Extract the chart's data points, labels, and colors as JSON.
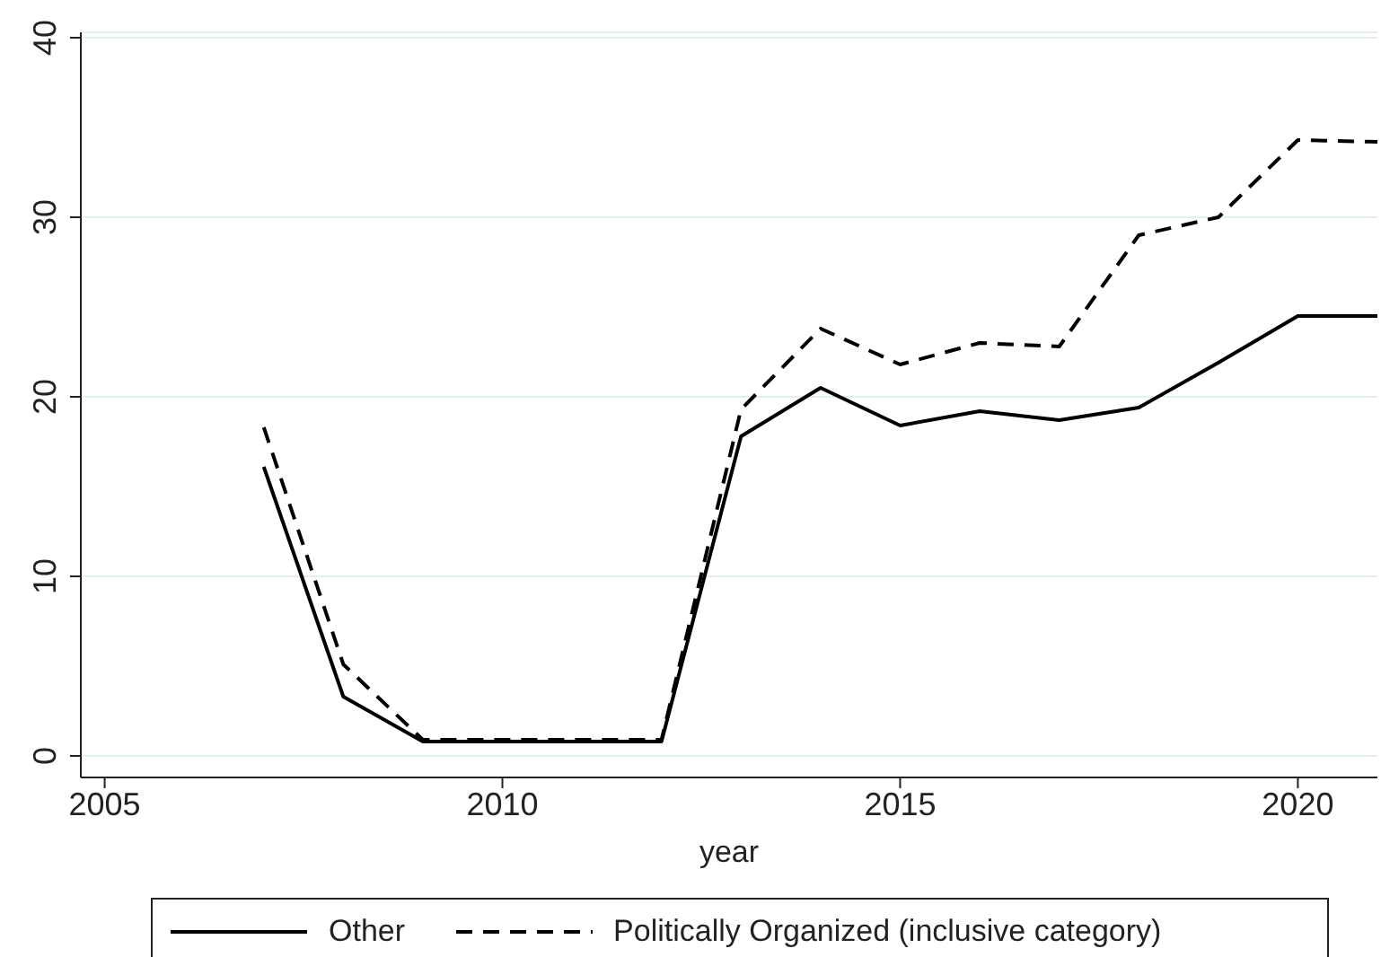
{
  "chart_data": {
    "type": "line",
    "xlabel": "year",
    "x": [
      2007,
      2008,
      2009,
      2010,
      2011,
      2012,
      2013,
      2014,
      2015,
      2016,
      2017,
      2018,
      2019,
      2020,
      2021
    ],
    "series": [
      {
        "name": "Other",
        "color": "#000000",
        "line_style": "solid",
        "values": [
          16.1,
          3.3,
          0.8,
          0.8,
          0.8,
          0.8,
          17.8,
          20.5,
          18.4,
          19.2,
          18.7,
          19.4,
          21.9,
          24.5,
          24.5
        ]
      },
      {
        "name": "Politically Organized (inclusive category)",
        "color": "#000000",
        "line_style": "dashed",
        "values": [
          18.3,
          5.1,
          0.9,
          0.9,
          0.9,
          0.9,
          19.3,
          23.8,
          21.8,
          23.0,
          22.8,
          29.0,
          30.0,
          34.3,
          34.2
        ]
      }
    ],
    "xlim": [
      2004.7,
      2021
    ],
    "xticks": [
      2005,
      2010,
      2015,
      2020
    ],
    "ylim": [
      -1.2,
      40.3
    ],
    "yticks": [
      0,
      10,
      20,
      30,
      40
    ],
    "grid": "y",
    "legend": "bottom",
    "marker": "none"
  }
}
